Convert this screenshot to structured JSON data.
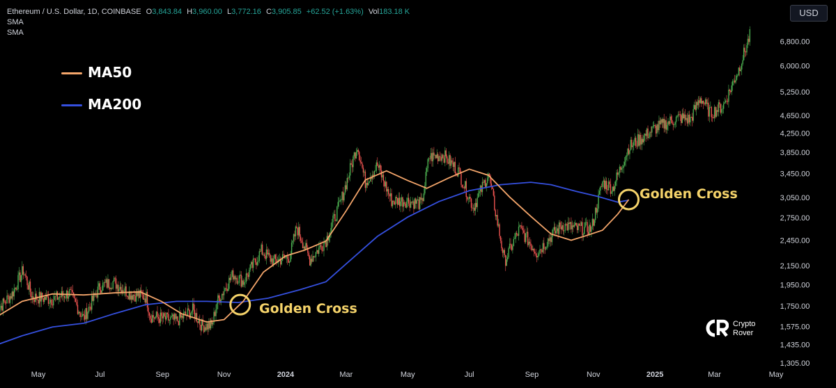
{
  "header": {
    "symbol": "Ethereum / U.S. Dollar, 1D, COINBASE",
    "o_label": "O",
    "o": "3,843.84",
    "h_label": "H",
    "h": "3,960.00",
    "l_label": "L",
    "l": "3,772.16",
    "c_label": "C",
    "c": "3,905.85",
    "change": "+62.52 (+1.63%)",
    "vol_label": "Vol",
    "vol": "183.18 K",
    "sma1": "SMA",
    "sma2": "SMA"
  },
  "currency_button": "USD",
  "logo": {
    "line1": "Crypto",
    "line2": "Rover"
  },
  "colors": {
    "ma50": "#f5a66b",
    "ma200": "#3550e0",
    "up": "#4caf50",
    "down": "#ef5350",
    "annotation": "#f5d36a"
  },
  "chart_data": {
    "type": "line",
    "y_scale": "log",
    "ylim": [
      1300,
      7400
    ],
    "y_ticks": [
      "6,800.00",
      "6,000.00",
      "5,250.00",
      "4,650.00",
      "4,250.00",
      "3,850.00",
      "3,450.00",
      "3,050.00",
      "2,750.00",
      "2,450.00",
      "2,150.00",
      "1,950.00",
      "1,750.00",
      "1,575.00",
      "1,435.00",
      "1,305.00"
    ],
    "x_ticks": [
      {
        "label": "May",
        "date": "2023-05-01",
        "bold": false
      },
      {
        "label": "Jul",
        "date": "2023-07-01",
        "bold": false
      },
      {
        "label": "Sep",
        "date": "2023-09-01",
        "bold": false
      },
      {
        "label": "Nov",
        "date": "2023-11-01",
        "bold": false
      },
      {
        "label": "2024",
        "date": "2024-01-01",
        "bold": true
      },
      {
        "label": "Mar",
        "date": "2024-03-01",
        "bold": false
      },
      {
        "label": "May",
        "date": "2024-05-01",
        "bold": false
      },
      {
        "label": "Jul",
        "date": "2024-07-01",
        "bold": false
      },
      {
        "label": "Sep",
        "date": "2024-09-01",
        "bold": false
      },
      {
        "label": "Nov",
        "date": "2024-11-01",
        "bold": false
      },
      {
        "label": "2025",
        "date": "2025-01-01",
        "bold": true
      },
      {
        "label": "Mar",
        "date": "2025-03-01",
        "bold": false
      },
      {
        "label": "May",
        "date": "2025-05-01",
        "bold": false
      }
    ],
    "series": [
      {
        "name": "MA50",
        "color": "#f5a66b",
        "points": [
          [
            "2023-03-20",
            1650
          ],
          [
            "2023-04-15",
            1790
          ],
          [
            "2023-05-15",
            1860
          ],
          [
            "2023-06-15",
            1850
          ],
          [
            "2023-07-15",
            1870
          ],
          [
            "2023-08-10",
            1880
          ],
          [
            "2023-08-31",
            1790
          ],
          [
            "2023-09-20",
            1680
          ],
          [
            "2023-10-15",
            1610
          ],
          [
            "2023-11-01",
            1630
          ],
          [
            "2023-11-20",
            1790
          ],
          [
            "2023-12-10",
            2080
          ],
          [
            "2024-01-01",
            2260
          ],
          [
            "2024-01-20",
            2330
          ],
          [
            "2024-02-10",
            2440
          ],
          [
            "2024-03-01",
            2850
          ],
          [
            "2024-03-20",
            3340
          ],
          [
            "2024-04-10",
            3500
          ],
          [
            "2024-05-01",
            3330
          ],
          [
            "2024-05-20",
            3200
          ],
          [
            "2024-06-10",
            3370
          ],
          [
            "2024-07-01",
            3530
          ],
          [
            "2024-07-20",
            3420
          ],
          [
            "2024-08-10",
            3060
          ],
          [
            "2024-08-31",
            2770
          ],
          [
            "2024-09-20",
            2530
          ],
          [
            "2024-10-10",
            2450
          ],
          [
            "2024-10-25",
            2510
          ],
          [
            "2024-11-10",
            2580
          ],
          [
            "2024-11-25",
            2800
          ],
          [
            "2024-12-06",
            3020
          ]
        ]
      },
      {
        "name": "MA200",
        "color": "#3550e0",
        "points": [
          [
            "2023-03-20",
            1430
          ],
          [
            "2023-04-15",
            1500
          ],
          [
            "2023-05-15",
            1570
          ],
          [
            "2023-06-15",
            1600
          ],
          [
            "2023-07-15",
            1680
          ],
          [
            "2023-08-15",
            1760
          ],
          [
            "2023-09-15",
            1790
          ],
          [
            "2023-10-15",
            1790
          ],
          [
            "2023-11-15",
            1780
          ],
          [
            "2023-12-15",
            1820
          ],
          [
            "2024-01-15",
            1900
          ],
          [
            "2024-02-10",
            1980
          ],
          [
            "2024-03-05",
            2210
          ],
          [
            "2024-04-01",
            2500
          ],
          [
            "2024-05-01",
            2760
          ],
          [
            "2024-06-01",
            2990
          ],
          [
            "2024-07-01",
            3160
          ],
          [
            "2024-08-01",
            3260
          ],
          [
            "2024-08-31",
            3300
          ],
          [
            "2024-09-20",
            3260
          ],
          [
            "2024-10-15",
            3150
          ],
          [
            "2024-11-05",
            3070
          ],
          [
            "2024-11-25",
            2980
          ],
          [
            "2024-12-06",
            3010
          ]
        ]
      },
      {
        "name": "ETH/USD",
        "points": [
          [
            "2023-03-20",
            1700
          ],
          [
            "2023-04-05",
            1860
          ],
          [
            "2023-04-16",
            2100
          ],
          [
            "2023-04-25",
            1830
          ],
          [
            "2023-05-15",
            1810
          ],
          [
            "2023-06-01",
            1870
          ],
          [
            "2023-06-15",
            1640
          ],
          [
            "2023-06-20",
            1730
          ],
          [
            "2023-07-01",
            1930
          ],
          [
            "2023-07-14",
            1980
          ],
          [
            "2023-07-31",
            1860
          ],
          [
            "2023-08-16",
            1830
          ],
          [
            "2023-08-20",
            1660
          ],
          [
            "2023-09-01",
            1640
          ],
          [
            "2023-09-15",
            1620
          ],
          [
            "2023-10-01",
            1710
          ],
          [
            "2023-10-10",
            1580
          ],
          [
            "2023-10-20",
            1580
          ],
          [
            "2023-10-25",
            1780
          ],
          [
            "2023-11-10",
            2060
          ],
          [
            "2023-11-20",
            1980
          ],
          [
            "2023-12-08",
            2320
          ],
          [
            "2023-12-20",
            2200
          ],
          [
            "2024-01-05",
            2250
          ],
          [
            "2024-01-12",
            2620
          ],
          [
            "2024-01-25",
            2220
          ],
          [
            "2024-02-10",
            2450
          ],
          [
            "2024-02-25",
            3000
          ],
          [
            "2024-03-12",
            4000
          ],
          [
            "2024-03-20",
            3300
          ],
          [
            "2024-04-01",
            3600
          ],
          [
            "2024-04-15",
            3000
          ],
          [
            "2024-05-01",
            3000
          ],
          [
            "2024-05-15",
            2950
          ],
          [
            "2024-05-22",
            3750
          ],
          [
            "2024-06-05",
            3800
          ],
          [
            "2024-06-20",
            3500
          ],
          [
            "2024-07-05",
            2900
          ],
          [
            "2024-07-20",
            3450
          ],
          [
            "2024-08-05",
            2200
          ],
          [
            "2024-08-20",
            2600
          ],
          [
            "2024-09-06",
            2300
          ],
          [
            "2024-09-20",
            2500
          ],
          [
            "2024-10-01",
            2650
          ],
          [
            "2024-10-15",
            2600
          ],
          [
            "2024-10-30",
            2600
          ],
          [
            "2024-11-10",
            3300
          ],
          [
            "2024-11-20",
            3200
          ],
          [
            "2024-12-06",
            3950
          ],
          [
            "2024-12-16",
            4100
          ],
          [
            "2025-01-01",
            4350
          ],
          [
            "2025-01-15",
            4500
          ],
          [
            "2025-01-25",
            4600
          ],
          [
            "2025-02-05",
            4550
          ],
          [
            "2025-02-15",
            5100
          ],
          [
            "2025-02-25",
            4700
          ],
          [
            "2025-03-10",
            4900
          ],
          [
            "2025-03-25",
            5900
          ],
          [
            "2025-04-05",
            7000
          ]
        ]
      }
    ],
    "annotations": [
      {
        "text": "Golden Cross",
        "date": "2023-11-17",
        "value": 1760
      },
      {
        "text": "Golden Cross",
        "date": "2024-12-06",
        "value": 3020
      }
    ],
    "legend": [
      {
        "label": "MA50",
        "color": "#f5a66b"
      },
      {
        "label": "MA200",
        "color": "#3550e0"
      }
    ],
    "grid": false,
    "legend_position": "top-left"
  }
}
